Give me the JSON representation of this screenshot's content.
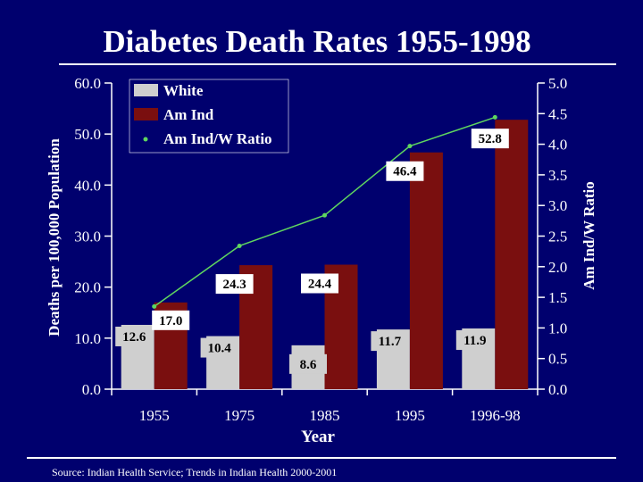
{
  "colors": {
    "background": "#00006e",
    "text": "#ffffff",
    "white_bar": "#cfcfcf",
    "am_ind_bar": "#7a0f0f",
    "ratio_line": "#5fd65f",
    "label_text": "#000000"
  },
  "source": "Source: Indian Health Service; Trends in Indian Health 2000-2001",
  "chart_data": {
    "type": "bar",
    "title": "Diabetes Death Rates 1955-1998",
    "xlabel": "Year",
    "ylabel": "Deaths per 100,000 Population",
    "y2label": "Am Ind/W Ratio",
    "categories": [
      "1955",
      "1975",
      "1985",
      "1995",
      "1996-98"
    ],
    "ylim": [
      0,
      60
    ],
    "yticks": [
      "0.0",
      "10.0",
      "20.0",
      "30.0",
      "40.0",
      "50.0",
      "60.0"
    ],
    "y2lim": [
      0,
      5
    ],
    "y2ticks": [
      "0.0",
      "0.5",
      "1.0",
      "1.5",
      "2.0",
      "2.5",
      "3.0",
      "3.5",
      "4.0",
      "4.5",
      "5.0"
    ],
    "series": [
      {
        "name": "White",
        "values": [
          12.6,
          10.4,
          8.6,
          11.7,
          11.9
        ],
        "labels": [
          "12.6",
          "10.4",
          "8.6",
          "11.7",
          "11.9"
        ]
      },
      {
        "name": "Am Ind",
        "values": [
          17.0,
          24.3,
          24.4,
          46.4,
          52.8
        ],
        "labels": [
          "17.0",
          "24.3",
          "24.4",
          "46.4",
          "52.8"
        ]
      }
    ],
    "ratio_series": {
      "name": "Am Ind/W Ratio",
      "axis": "right",
      "values": [
        1.35,
        2.34,
        2.84,
        3.97,
        4.44
      ]
    },
    "legend": [
      "White",
      "Am Ind",
      "Am Ind/W Ratio"
    ],
    "legend_position": "top-left"
  }
}
